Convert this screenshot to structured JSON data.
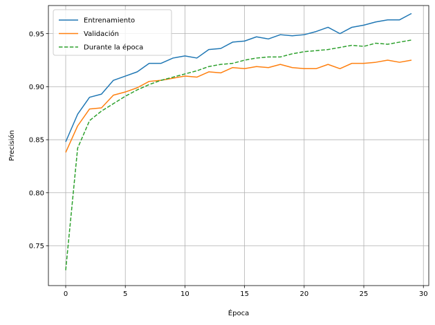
{
  "chart_data": {
    "type": "line",
    "xlabel": "Época",
    "ylabel": "Precisión",
    "xlim": [
      -1.45,
      30.45
    ],
    "ylim": [
      0.7125,
      0.9765
    ],
    "xticks": [
      0,
      5,
      10,
      15,
      20,
      25,
      30
    ],
    "yticks": [
      0.75,
      0.8,
      0.85,
      0.9,
      0.95
    ],
    "ytick_labels": [
      "0.75",
      "0.80",
      "0.85",
      "0.90",
      "0.95"
    ],
    "grid": true,
    "legend_position": "upper-left",
    "x": [
      0,
      1,
      2,
      3,
      4,
      5,
      6,
      7,
      8,
      9,
      10,
      11,
      12,
      13,
      14,
      15,
      16,
      17,
      18,
      19,
      20,
      21,
      22,
      23,
      24,
      25,
      26,
      27,
      28,
      29
    ],
    "series": [
      {
        "name": "Entrenamiento",
        "color": "#1f77b4",
        "style": "solid",
        "values": [
          0.848,
          0.874,
          0.89,
          0.893,
          0.906,
          0.91,
          0.914,
          0.922,
          0.922,
          0.927,
          0.929,
          0.927,
          0.935,
          0.936,
          0.942,
          0.943,
          0.947,
          0.945,
          0.949,
          0.948,
          0.949,
          0.952,
          0.956,
          0.95,
          0.956,
          0.958,
          0.961,
          0.963,
          0.963,
          0.969
        ]
      },
      {
        "name": "Validación",
        "color": "#ff7f0e",
        "style": "solid",
        "values": [
          0.838,
          0.863,
          0.879,
          0.88,
          0.892,
          0.895,
          0.899,
          0.905,
          0.906,
          0.908,
          0.91,
          0.909,
          0.914,
          0.913,
          0.918,
          0.917,
          0.919,
          0.918,
          0.921,
          0.918,
          0.917,
          0.917,
          0.921,
          0.917,
          0.922,
          0.922,
          0.923,
          0.925,
          0.923,
          0.925
        ]
      },
      {
        "name": "Durante la época",
        "color": "#2ca02c",
        "style": "dashed",
        "values": [
          0.727,
          0.842,
          0.868,
          0.877,
          0.884,
          0.891,
          0.897,
          0.902,
          0.906,
          0.909,
          0.912,
          0.915,
          0.919,
          0.921,
          0.922,
          0.925,
          0.927,
          0.928,
          0.928,
          0.931,
          0.933,
          0.934,
          0.935,
          0.937,
          0.939,
          0.938,
          0.941,
          0.94,
          0.942,
          0.944
        ]
      }
    ]
  }
}
